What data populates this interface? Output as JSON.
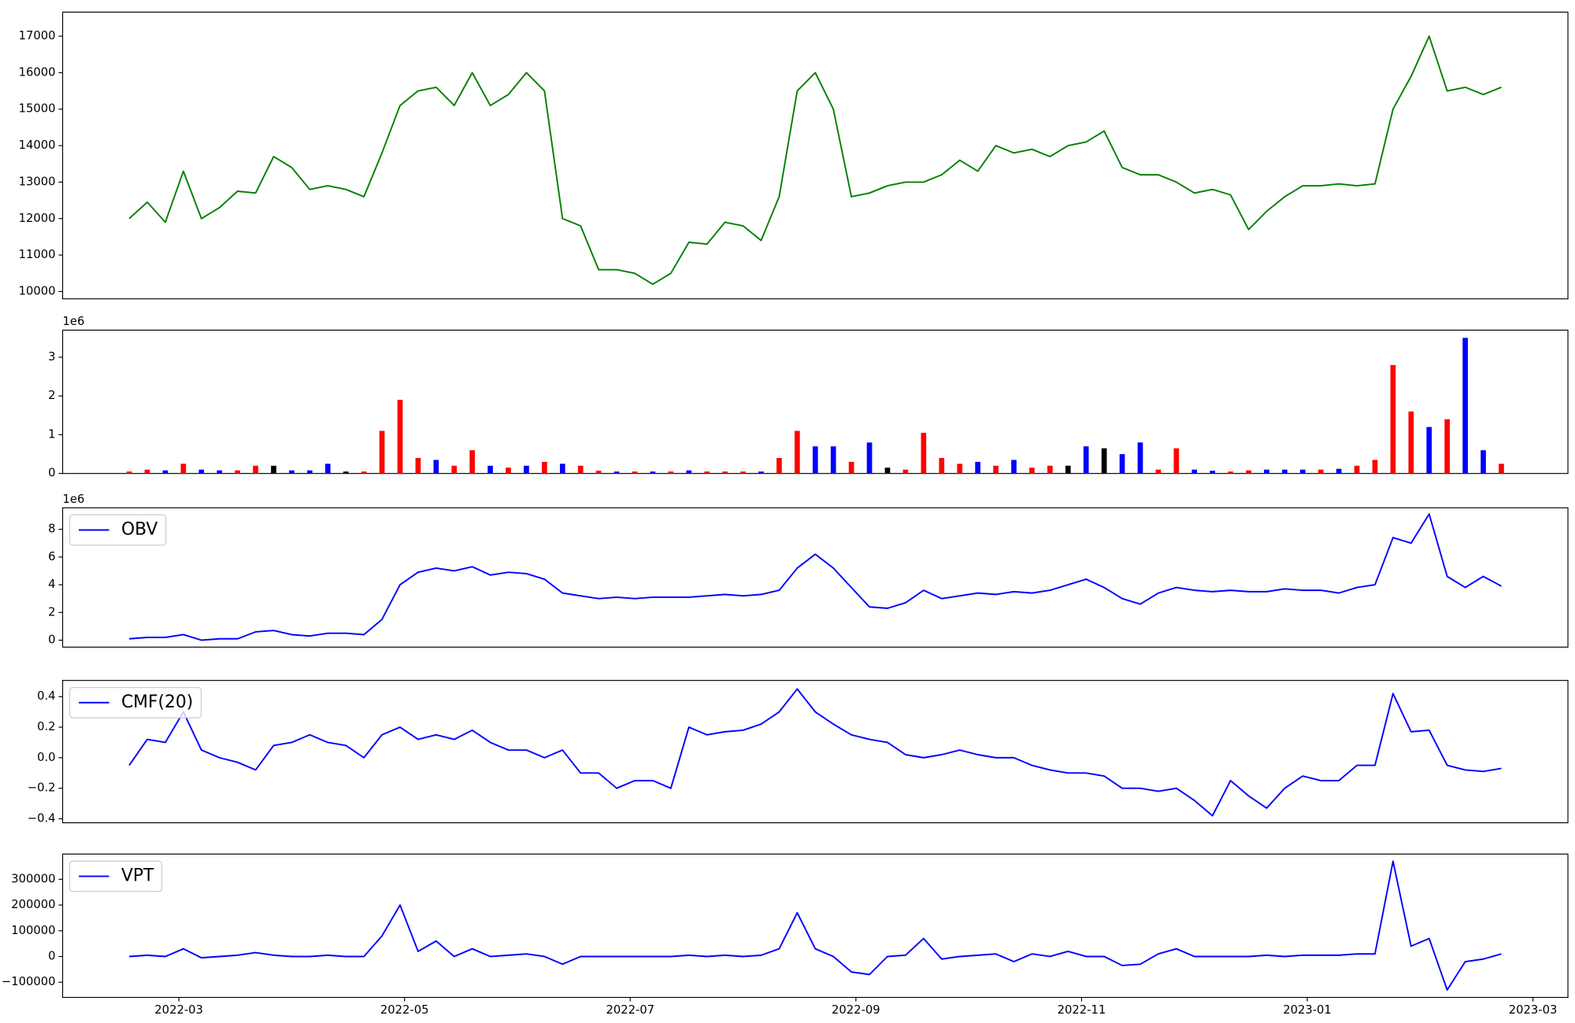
{
  "chart_data": [
    {
      "type": "line",
      "xlim": [
        0.97,
        14.31
      ],
      "x": [
        1.56,
        1.72,
        1.88,
        2.04,
        2.2,
        2.36,
        2.52,
        2.68,
        2.84,
        3,
        3.16,
        3.32,
        3.48,
        3.64,
        3.8,
        3.96,
        4.12,
        4.28,
        4.44,
        4.6,
        4.76,
        4.92,
        5.08,
        5.24,
        5.4,
        5.56,
        5.72,
        5.88,
        6.04,
        6.2,
        6.36,
        6.52,
        6.68,
        6.84,
        7,
        7.16,
        7.32,
        7.48,
        7.64,
        7.8,
        7.96,
        8.12,
        8.28,
        8.44,
        8.6,
        8.76,
        8.92,
        9.08,
        9.24,
        9.4,
        9.56,
        9.72,
        9.88,
        10.04,
        10.2,
        10.36,
        10.52,
        10.68,
        10.84,
        11,
        11.16,
        11.32,
        11.48,
        11.64,
        11.8,
        11.96,
        12.12,
        12.28,
        12.44,
        12.6,
        12.76,
        12.92,
        13.08,
        13.24,
        13.4,
        13.56,
        13.72
      ],
      "ylim": [
        9800,
        17660
      ],
      "yticks": [
        10000,
        11000,
        12000,
        13000,
        14000,
        15000,
        16000,
        17000
      ],
      "series": [
        {
          "color": "green",
          "values": [
            12000,
            12450,
            11900,
            13300,
            12000,
            12300,
            12750,
            12700,
            13700,
            13400,
            12800,
            12900,
            12800,
            12600,
            13800,
            15100,
            15500,
            15600,
            15100,
            16000,
            15100,
            15400,
            16000,
            15500,
            12000,
            11800,
            10600,
            10600,
            10500,
            10200,
            10500,
            11350,
            11300,
            11900,
            11800,
            11400,
            12600,
            15500,
            16000,
            15000,
            12600,
            12700,
            12900,
            13000,
            13000,
            13200,
            13600,
            13300,
            14000,
            13800,
            13900,
            13700,
            14000,
            14100,
            14400,
            13400,
            13200,
            13200,
            13000,
            12700,
            12800,
            12650,
            11700,
            12200,
            12600,
            12900,
            12900,
            12950,
            12900,
            12950,
            15000,
            15900,
            17000,
            15500,
            15600,
            15400,
            15600
          ]
        }
      ]
    },
    {
      "type": "bar",
      "xlim": [
        0.97,
        14.31
      ],
      "y_offset_label": "1e6",
      "x": [
        1.56,
        1.72,
        1.88,
        2.04,
        2.2,
        2.36,
        2.52,
        2.68,
        2.84,
        3,
        3.16,
        3.32,
        3.48,
        3.64,
        3.8,
        3.96,
        4.12,
        4.28,
        4.44,
        4.6,
        4.76,
        4.92,
        5.08,
        5.24,
        5.4,
        5.56,
        5.72,
        5.88,
        6.04,
        6.2,
        6.36,
        6.52,
        6.68,
        6.84,
        7,
        7.16,
        7.32,
        7.48,
        7.64,
        7.8,
        7.96,
        8.12,
        8.28,
        8.44,
        8.6,
        8.76,
        8.92,
        9.08,
        9.24,
        9.4,
        9.56,
        9.72,
        9.88,
        10.04,
        10.2,
        10.36,
        10.52,
        10.68,
        10.84,
        11,
        11.16,
        11.32,
        11.48,
        11.64,
        11.8,
        11.96,
        12.12,
        12.28,
        12.44,
        12.6,
        12.76,
        12.92,
        13.08,
        13.24,
        13.4,
        13.56,
        13.72
      ],
      "ylim": [
        0,
        3.7
      ],
      "yticks": [
        0,
        1,
        2,
        3
      ],
      "values": [
        0.05,
        0.1,
        0.08,
        0.25,
        0.1,
        0.08,
        0.08,
        0.2,
        0.2,
        0.08,
        0.08,
        0.25,
        0.05,
        0.05,
        1.1,
        1.9,
        0.4,
        0.35,
        0.2,
        0.6,
        0.2,
        0.15,
        0.2,
        0.3,
        0.25,
        0.2,
        0.07,
        0.05,
        0.05,
        0.05,
        0.05,
        0.08,
        0.05,
        0.05,
        0.05,
        0.05,
        0.4,
        1.1,
        0.7,
        0.7,
        0.3,
        0.8,
        0.15,
        0.1,
        1.05,
        0.4,
        0.25,
        0.3,
        0.2,
        0.35,
        0.15,
        0.2,
        0.2,
        0.7,
        0.65,
        0.5,
        0.8,
        0.1,
        0.65,
        0.1,
        0.07,
        0.05,
        0.08,
        0.1,
        0.1,
        0.1,
        0.1,
        0.12,
        0.2,
        0.35,
        2.8,
        1.6,
        1.2,
        1.4,
        3.5,
        0.6,
        0.25
      ],
      "colors": [
        "red",
        "red",
        "blue",
        "red",
        "blue",
        "blue",
        "red",
        "red",
        "black",
        "blue",
        "blue",
        "blue",
        "black",
        "red",
        "red",
        "red",
        "red",
        "blue",
        "red",
        "red",
        "blue",
        "red",
        "blue",
        "red",
        "blue",
        "red",
        "red",
        "blue",
        "red",
        "blue",
        "red",
        "blue",
        "red",
        "red",
        "red",
        "blue",
        "red",
        "red",
        "blue",
        "blue",
        "red",
        "blue",
        "black",
        "red",
        "red",
        "red",
        "red",
        "blue",
        "red",
        "blue",
        "red",
        "red",
        "black",
        "blue",
        "black",
        "blue",
        "blue",
        "red",
        "red",
        "blue",
        "blue",
        "red",
        "red",
        "blue",
        "blue",
        "blue",
        "red",
        "blue",
        "red",
        "red",
        "red",
        "red",
        "blue",
        "red",
        "blue",
        "blue",
        "red"
      ]
    },
    {
      "type": "line",
      "xlim": [
        0.97,
        14.31
      ],
      "y_offset_label": "1e6",
      "legend": "upper left",
      "x": [
        1.56,
        1.72,
        1.88,
        2.04,
        2.2,
        2.36,
        2.52,
        2.68,
        2.84,
        3,
        3.16,
        3.32,
        3.48,
        3.64,
        3.8,
        3.96,
        4.12,
        4.28,
        4.44,
        4.6,
        4.76,
        4.92,
        5.08,
        5.24,
        5.4,
        5.56,
        5.72,
        5.88,
        6.04,
        6.2,
        6.36,
        6.52,
        6.68,
        6.84,
        7,
        7.16,
        7.32,
        7.48,
        7.64,
        7.8,
        7.96,
        8.12,
        8.28,
        8.44,
        8.6,
        8.76,
        8.92,
        9.08,
        9.24,
        9.4,
        9.56,
        9.72,
        9.88,
        10.04,
        10.2,
        10.36,
        10.52,
        10.68,
        10.84,
        11,
        11.16,
        11.32,
        11.48,
        11.64,
        11.8,
        11.96,
        12.12,
        12.28,
        12.44,
        12.6,
        12.76,
        12.92,
        13.08,
        13.24,
        13.4,
        13.56,
        13.72
      ],
      "ylim": [
        -0.5,
        9.55
      ],
      "yticks": [
        0,
        2,
        4,
        6,
        8
      ],
      "series": [
        {
          "name": "OBV",
          "color": "blue",
          "values": [
            0.1,
            0.2,
            0.2,
            0.4,
            0,
            0.1,
            0.1,
            0.6,
            0.7,
            0.4,
            0.3,
            0.5,
            0.5,
            0.4,
            1.5,
            4.0,
            4.9,
            5.2,
            5.0,
            5.3,
            4.7,
            4.9,
            4.8,
            4.4,
            3.4,
            3.2,
            3.0,
            3.1,
            3.0,
            3.1,
            3.1,
            3.1,
            3.2,
            3.3,
            3.2,
            3.3,
            3.6,
            5.2,
            6.2,
            5.2,
            3.8,
            2.4,
            2.3,
            2.7,
            3.6,
            3.0,
            3.2,
            3.4,
            3.3,
            3.5,
            3.4,
            3.6,
            4.0,
            4.4,
            3.8,
            3.0,
            2.6,
            3.4,
            3.8,
            3.6,
            3.5,
            3.6,
            3.5,
            3.5,
            3.7,
            3.6,
            3.6,
            3.4,
            3.8,
            4.0,
            7.4,
            7.0,
            9.1,
            4.6,
            3.8,
            4.6,
            3.9
          ]
        }
      ]
    },
    {
      "type": "line",
      "xlim": [
        0.97,
        14.31
      ],
      "legend": "upper left",
      "x": [
        1.56,
        1.72,
        1.88,
        2.04,
        2.2,
        2.36,
        2.52,
        2.68,
        2.84,
        3,
        3.16,
        3.32,
        3.48,
        3.64,
        3.8,
        3.96,
        4.12,
        4.28,
        4.44,
        4.6,
        4.76,
        4.92,
        5.08,
        5.24,
        5.4,
        5.56,
        5.72,
        5.88,
        6.04,
        6.2,
        6.36,
        6.52,
        6.68,
        6.84,
        7,
        7.16,
        7.32,
        7.48,
        7.64,
        7.8,
        7.96,
        8.12,
        8.28,
        8.44,
        8.6,
        8.76,
        8.92,
        9.08,
        9.24,
        9.4,
        9.56,
        9.72,
        9.88,
        10.04,
        10.2,
        10.36,
        10.52,
        10.68,
        10.84,
        11,
        11.16,
        11.32,
        11.48,
        11.64,
        11.8,
        11.96,
        12.12,
        12.28,
        12.44,
        12.6,
        12.76,
        12.92,
        13.08,
        13.24,
        13.4,
        13.56,
        13.72
      ],
      "ylim": [
        -0.426,
        0.506
      ],
      "yticks": [
        {
          "value": -0.4,
          "label": "−0.4"
        },
        {
          "value": -0.2,
          "label": "−0.2"
        },
        {
          "value": 0,
          "label": "0.0"
        },
        0.2,
        0.4
      ],
      "series": [
        {
          "name": "CMF(20)",
          "color": "blue",
          "values": [
            -0.05,
            0.12,
            0.1,
            0.3,
            0.05,
            0,
            -0.03,
            -0.08,
            0.08,
            0.1,
            0.15,
            0.1,
            0.08,
            0,
            0.15,
            0.2,
            0.12,
            0.15,
            0.12,
            0.18,
            0.1,
            0.05,
            0.05,
            0,
            0.05,
            -0.1,
            -0.1,
            -0.2,
            -0.15,
            -0.15,
            -0.2,
            0.2,
            0.15,
            0.17,
            0.18,
            0.22,
            0.3,
            0.45,
            0.3,
            0.22,
            0.15,
            0.12,
            0.1,
            0.02,
            0,
            0.02,
            0.05,
            0.02,
            0,
            0,
            -0.05,
            -0.08,
            -0.1,
            -0.1,
            -0.12,
            -0.2,
            -0.2,
            -0.22,
            -0.2,
            -0.28,
            -0.38,
            -0.15,
            -0.25,
            -0.33,
            -0.2,
            -0.12,
            -0.15,
            -0.15,
            -0.05,
            -0.05,
            0.42,
            0.17,
            0.18,
            -0.05,
            -0.08,
            -0.09,
            -0.07
          ]
        }
      ]
    },
    {
      "type": "line",
      "xlim": [
        0.97,
        14.31
      ],
      "legend": "upper left",
      "x": [
        1.56,
        1.72,
        1.88,
        2.04,
        2.2,
        2.36,
        2.52,
        2.68,
        2.84,
        3,
        3.16,
        3.32,
        3.48,
        3.64,
        3.8,
        3.96,
        4.12,
        4.28,
        4.44,
        4.6,
        4.76,
        4.92,
        5.08,
        5.24,
        5.4,
        5.56,
        5.72,
        5.88,
        6.04,
        6.2,
        6.36,
        6.52,
        6.68,
        6.84,
        7,
        7.16,
        7.32,
        7.48,
        7.64,
        7.8,
        7.96,
        8.12,
        8.28,
        8.44,
        8.6,
        8.76,
        8.92,
        9.08,
        9.24,
        9.4,
        9.56,
        9.72,
        9.88,
        10.04,
        10.2,
        10.36,
        10.52,
        10.68,
        10.84,
        11,
        11.16,
        11.32,
        11.48,
        11.64,
        11.8,
        11.96,
        12.12,
        12.28,
        12.44,
        12.6,
        12.76,
        12.92,
        13.08,
        13.24,
        13.4,
        13.56,
        13.72
      ],
      "xticks": [
        {
          "value": 2,
          "label": "2022-03"
        },
        {
          "value": 4,
          "label": "2022-05"
        },
        {
          "value": 6,
          "label": "2022-07"
        },
        {
          "value": 8,
          "label": "2022-09"
        },
        {
          "value": 10,
          "label": "2022-11"
        },
        {
          "value": 12,
          "label": "2023-01"
        },
        {
          "value": 14,
          "label": "2023-03"
        }
      ],
      "ylim": [
        -159000,
        398000
      ],
      "yticks": [
        {
          "value": -100000,
          "label": "−100000"
        },
        0,
        100000,
        200000,
        300000
      ],
      "series": [
        {
          "name": "VPT",
          "color": "blue",
          "values": [
            0,
            5000,
            0,
            30000,
            -5000,
            0,
            5000,
            15000,
            5000,
            0,
            0,
            5000,
            0,
            0,
            80000,
            200000,
            20000,
            60000,
            0,
            30000,
            0,
            5000,
            10000,
            0,
            -30000,
            0,
            0,
            0,
            0,
            0,
            0,
            5000,
            0,
            5000,
            0,
            5000,
            30000,
            170000,
            30000,
            0,
            -60000,
            -70000,
            0,
            5000,
            70000,
            -10000,
            0,
            5000,
            10000,
            -20000,
            10000,
            0,
            20000,
            0,
            0,
            -35000,
            -30000,
            10000,
            30000,
            0,
            0,
            0,
            0,
            5000,
            0,
            5000,
            5000,
            5000,
            10000,
            10000,
            370000,
            40000,
            70000,
            -130000,
            -20000,
            -10000,
            10000
          ]
        }
      ]
    }
  ]
}
